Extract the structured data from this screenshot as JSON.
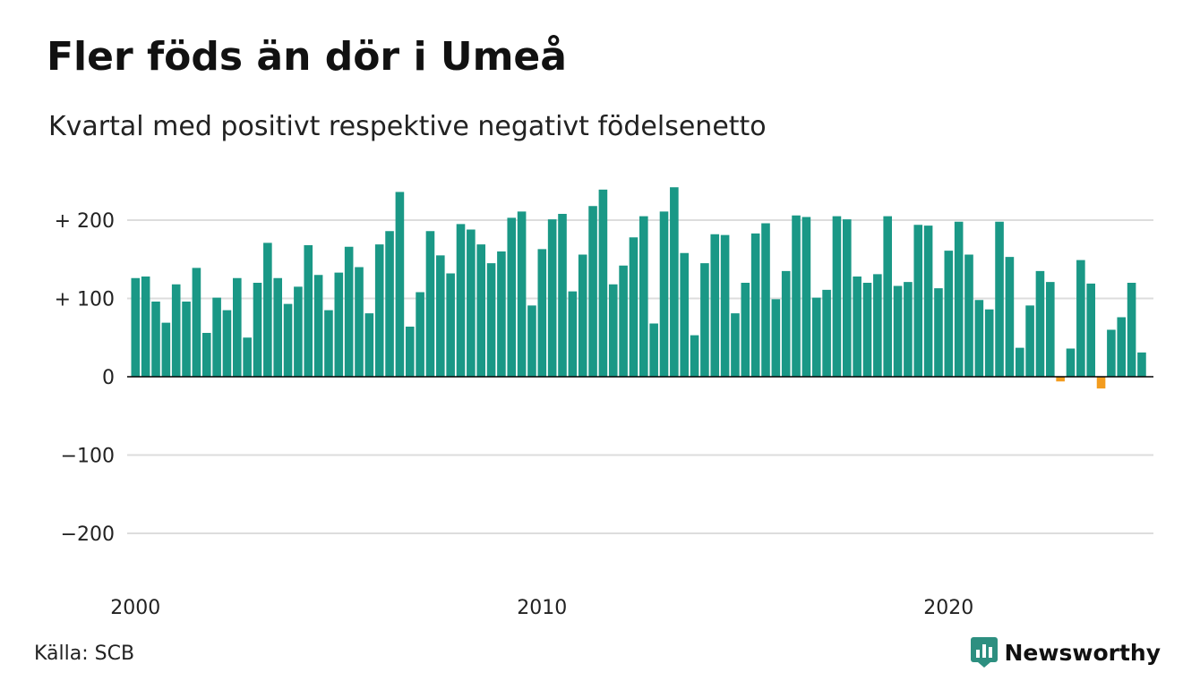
{
  "header": {
    "title": "Fler föds än dör i Umeå",
    "subtitle": "Kvartal med positivt respektive negativt födelsenetto"
  },
  "footer": {
    "source": "Källa: SCB",
    "brand": "Newsworthy"
  },
  "colors": {
    "positive": "#1a9886",
    "negative": "#f39c1f",
    "brand": "#2d8f80",
    "grid": "#dddddd",
    "axis": "#000000"
  },
  "chart_data": {
    "type": "bar",
    "x_start": "2000 Q1",
    "x_step": "quarter",
    "x_ticks": [
      "2000",
      "2010",
      "2020"
    ],
    "y_ticks": [
      {
        "value": 200,
        "label": "+ 200"
      },
      {
        "value": 100,
        "label": "+ 100"
      },
      {
        "value": 0,
        "label": "0"
      },
      {
        "value": -100,
        "label": "−100"
      },
      {
        "value": -200,
        "label": "−200"
      }
    ],
    "ylim": [
      -250,
      250
    ],
    "grid": true,
    "values": [
      126,
      128,
      96,
      69,
      118,
      96,
      139,
      56,
      101,
      85,
      126,
      50,
      120,
      171,
      126,
      93,
      115,
      168,
      130,
      85,
      133,
      166,
      140,
      81,
      169,
      186,
      236,
      64,
      108,
      186,
      155,
      132,
      195,
      188,
      169,
      145,
      160,
      203,
      211,
      91,
      163,
      201,
      208,
      109,
      156,
      218,
      239,
      118,
      142,
      178,
      205,
      68,
      211,
      242,
      158,
      53,
      145,
      182,
      181,
      81,
      120,
      183,
      196,
      99,
      135,
      206,
      204,
      101,
      111,
      205,
      201,
      128,
      120,
      131,
      205,
      116,
      121,
      194,
      193,
      113,
      161,
      198,
      156,
      98,
      86,
      198,
      153,
      37,
      91,
      135,
      121,
      -6,
      36,
      149,
      119,
      -15,
      60,
      76,
      120,
      31
    ]
  }
}
